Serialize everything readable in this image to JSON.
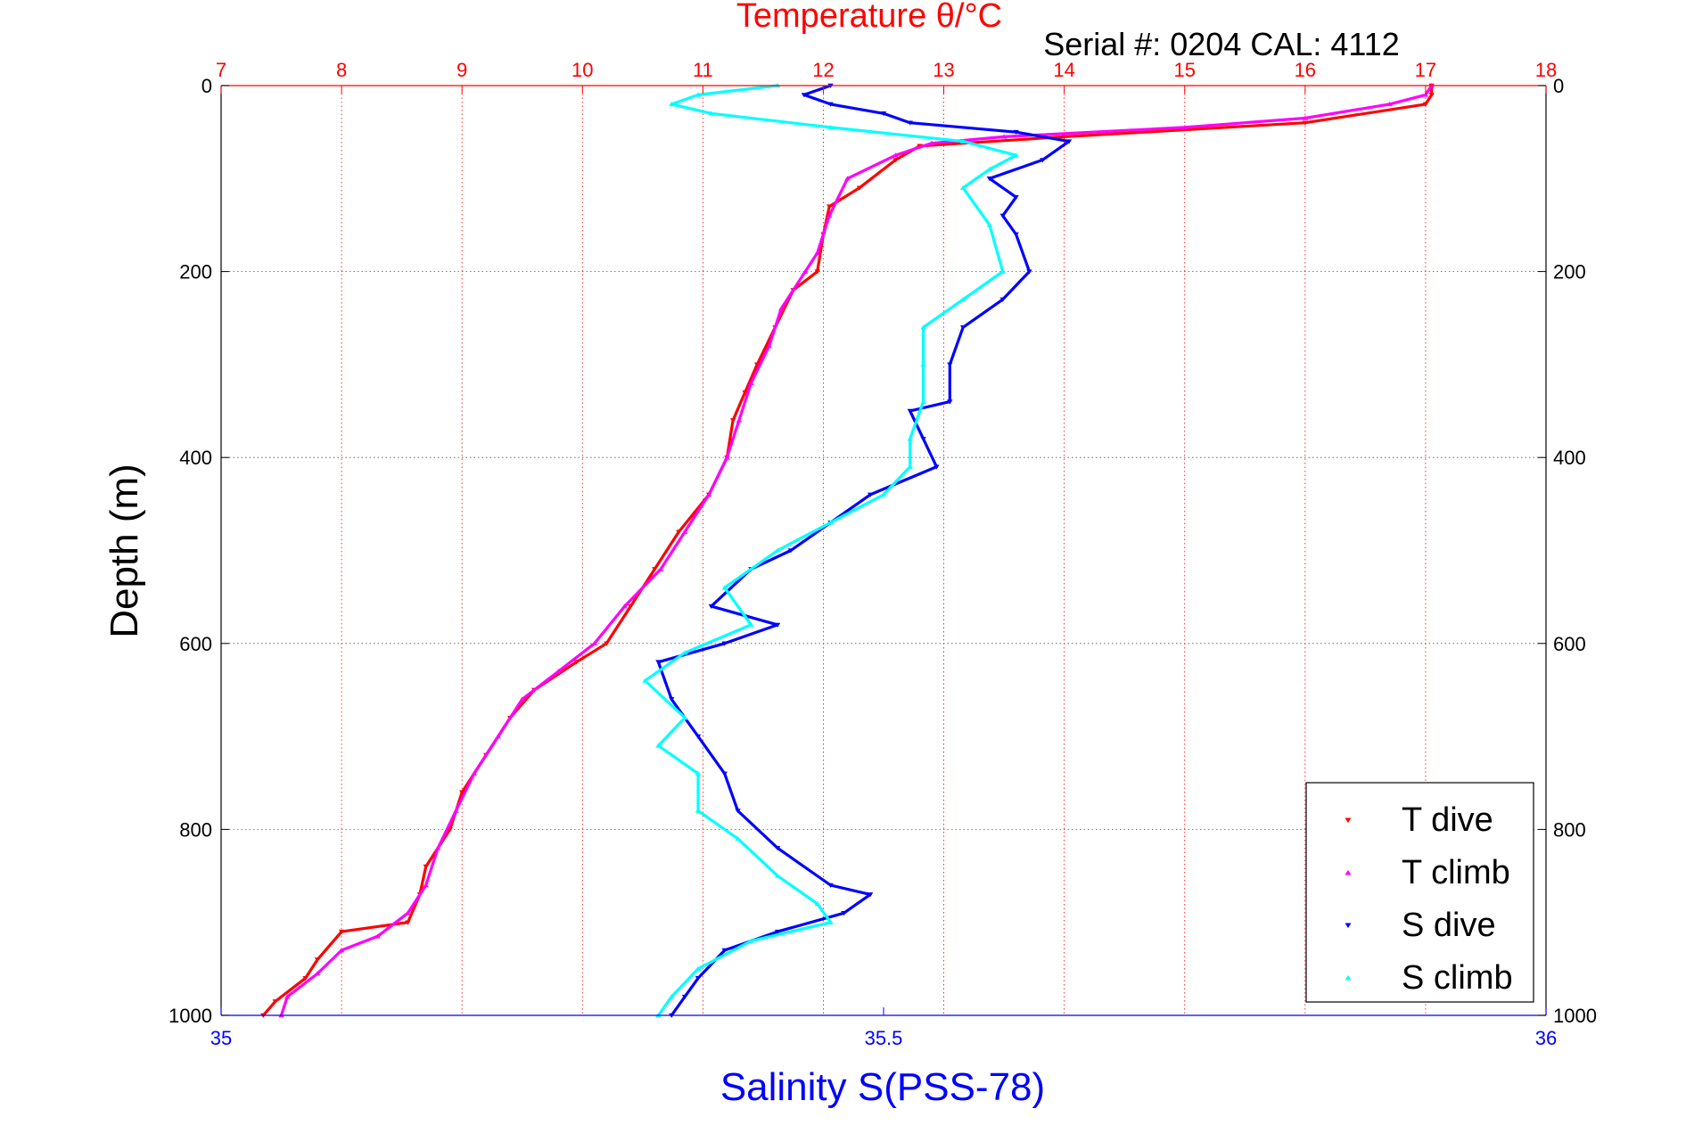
{
  "chart_data": {
    "type": "scatter",
    "title": "Temperature θ/°C",
    "subtitle": "Serial #: 0204  CAL: 4112",
    "ylabel": "Depth (m)",
    "xlabel_bottom": "Salinity S(PSS-78)",
    "ylim": [
      1000,
      0
    ],
    "y_ticks": [
      "0",
      "200",
      "400",
      "600",
      "800",
      "1000"
    ],
    "y_tick_values": [
      0,
      200,
      400,
      600,
      800,
      1000
    ],
    "temperature_axis": {
      "lim": [
        7,
        18
      ],
      "ticks": [
        "7",
        "8",
        "9",
        "10",
        "11",
        "12",
        "13",
        "14",
        "15",
        "16",
        "17",
        "18"
      ],
      "tick_values": [
        7,
        8,
        9,
        10,
        11,
        12,
        13,
        14,
        15,
        16,
        17,
        18
      ]
    },
    "salinity_axis": {
      "lim": [
        35,
        36
      ],
      "ticks": [
        "35",
        "35.5",
        "36"
      ],
      "tick_values": [
        35,
        35.5,
        36
      ]
    },
    "grid": true,
    "legend": {
      "position": "bottom-right"
    },
    "series": [
      {
        "name": "T dive",
        "axis": "temperature",
        "color": "#ff0000",
        "marker": "down-triangle",
        "points": [
          [
            17.05,
            0
          ],
          [
            17.05,
            10
          ],
          [
            17.0,
            20
          ],
          [
            16.0,
            40
          ],
          [
            14.0,
            55
          ],
          [
            12.8,
            65
          ],
          [
            12.6,
            80
          ],
          [
            12.3,
            110
          ],
          [
            12.05,
            130
          ],
          [
            12.0,
            160
          ],
          [
            11.95,
            200
          ],
          [
            11.75,
            220
          ],
          [
            11.6,
            260
          ],
          [
            11.45,
            300
          ],
          [
            11.35,
            330
          ],
          [
            11.25,
            360
          ],
          [
            11.2,
            400
          ],
          [
            11.05,
            440
          ],
          [
            10.8,
            480
          ],
          [
            10.6,
            520
          ],
          [
            10.4,
            560
          ],
          [
            10.2,
            600
          ],
          [
            9.95,
            620
          ],
          [
            9.6,
            650
          ],
          [
            9.4,
            680
          ],
          [
            9.2,
            720
          ],
          [
            9.0,
            760
          ],
          [
            8.9,
            800
          ],
          [
            8.7,
            840
          ],
          [
            8.65,
            870
          ],
          [
            8.55,
            900
          ],
          [
            8.0,
            910
          ],
          [
            7.8,
            940
          ],
          [
            7.7,
            960
          ],
          [
            7.45,
            985
          ],
          [
            7.35,
            1000
          ]
        ]
      },
      {
        "name": "T climb",
        "axis": "temperature",
        "color": "#ff00ff",
        "marker": "up-triangle",
        "points": [
          [
            17.05,
            0
          ],
          [
            17.0,
            10
          ],
          [
            16.7,
            20
          ],
          [
            16.0,
            35
          ],
          [
            15.0,
            45
          ],
          [
            13.5,
            55
          ],
          [
            12.9,
            62
          ],
          [
            12.6,
            75
          ],
          [
            12.2,
            100
          ],
          [
            12.05,
            140
          ],
          [
            11.95,
            180
          ],
          [
            11.85,
            200
          ],
          [
            11.65,
            240
          ],
          [
            11.55,
            280
          ],
          [
            11.4,
            320
          ],
          [
            11.3,
            360
          ],
          [
            11.2,
            400
          ],
          [
            11.05,
            440
          ],
          [
            10.85,
            480
          ],
          [
            10.65,
            520
          ],
          [
            10.35,
            560
          ],
          [
            10.1,
            600
          ],
          [
            9.8,
            630
          ],
          [
            9.5,
            660
          ],
          [
            9.3,
            700
          ],
          [
            9.1,
            740
          ],
          [
            8.95,
            780
          ],
          [
            8.8,
            820
          ],
          [
            8.7,
            860
          ],
          [
            8.55,
            890
          ],
          [
            8.3,
            915
          ],
          [
            8.0,
            930
          ],
          [
            7.8,
            955
          ],
          [
            7.55,
            980
          ],
          [
            7.5,
            1000
          ]
        ]
      },
      {
        "name": "S dive",
        "axis": "salinity",
        "color": "#0000ff",
        "marker": "down-triangle",
        "points": [
          [
            35.46,
            0
          ],
          [
            35.44,
            10
          ],
          [
            35.46,
            20
          ],
          [
            35.5,
            30
          ],
          [
            35.52,
            40
          ],
          [
            35.6,
            50
          ],
          [
            35.64,
            60
          ],
          [
            35.62,
            80
          ],
          [
            35.58,
            100
          ],
          [
            35.6,
            120
          ],
          [
            35.59,
            140
          ],
          [
            35.6,
            160
          ],
          [
            35.61,
            200
          ],
          [
            35.59,
            230
          ],
          [
            35.56,
            260
          ],
          [
            35.55,
            300
          ],
          [
            35.55,
            340
          ],
          [
            35.52,
            350
          ],
          [
            35.53,
            380
          ],
          [
            35.54,
            410
          ],
          [
            35.49,
            440
          ],
          [
            35.46,
            470
          ],
          [
            35.43,
            500
          ],
          [
            35.4,
            520
          ],
          [
            35.37,
            560
          ],
          [
            35.42,
            580
          ],
          [
            35.38,
            600
          ],
          [
            35.33,
            620
          ],
          [
            35.34,
            660
          ],
          [
            35.36,
            700
          ],
          [
            35.38,
            740
          ],
          [
            35.39,
            780
          ],
          [
            35.42,
            820
          ],
          [
            35.46,
            860
          ],
          [
            35.49,
            870
          ],
          [
            35.47,
            890
          ],
          [
            35.42,
            910
          ],
          [
            35.38,
            930
          ],
          [
            35.36,
            960
          ],
          [
            35.35,
            980
          ],
          [
            35.34,
            1000
          ]
        ]
      },
      {
        "name": "S climb",
        "axis": "salinity",
        "color": "#00ffff",
        "marker": "up-triangle",
        "points": [
          [
            35.42,
            0
          ],
          [
            35.36,
            10
          ],
          [
            35.34,
            20
          ],
          [
            35.37,
            30
          ],
          [
            35.46,
            45
          ],
          [
            35.56,
            60
          ],
          [
            35.6,
            75
          ],
          [
            35.58,
            90
          ],
          [
            35.56,
            110
          ],
          [
            35.58,
            150
          ],
          [
            35.59,
            200
          ],
          [
            35.56,
            230
          ],
          [
            35.53,
            260
          ],
          [
            35.53,
            300
          ],
          [
            35.53,
            340
          ],
          [
            35.52,
            380
          ],
          [
            35.52,
            410
          ],
          [
            35.5,
            440
          ],
          [
            35.46,
            470
          ],
          [
            35.42,
            500
          ],
          [
            35.38,
            540
          ],
          [
            35.4,
            580
          ],
          [
            35.35,
            610
          ],
          [
            35.32,
            640
          ],
          [
            35.35,
            680
          ],
          [
            35.33,
            710
          ],
          [
            35.36,
            740
          ],
          [
            35.36,
            780
          ],
          [
            35.39,
            810
          ],
          [
            35.42,
            850
          ],
          [
            35.45,
            880
          ],
          [
            35.46,
            900
          ],
          [
            35.4,
            920
          ],
          [
            35.36,
            950
          ],
          [
            35.34,
            980
          ],
          [
            35.33,
            1000
          ]
        ]
      }
    ]
  }
}
